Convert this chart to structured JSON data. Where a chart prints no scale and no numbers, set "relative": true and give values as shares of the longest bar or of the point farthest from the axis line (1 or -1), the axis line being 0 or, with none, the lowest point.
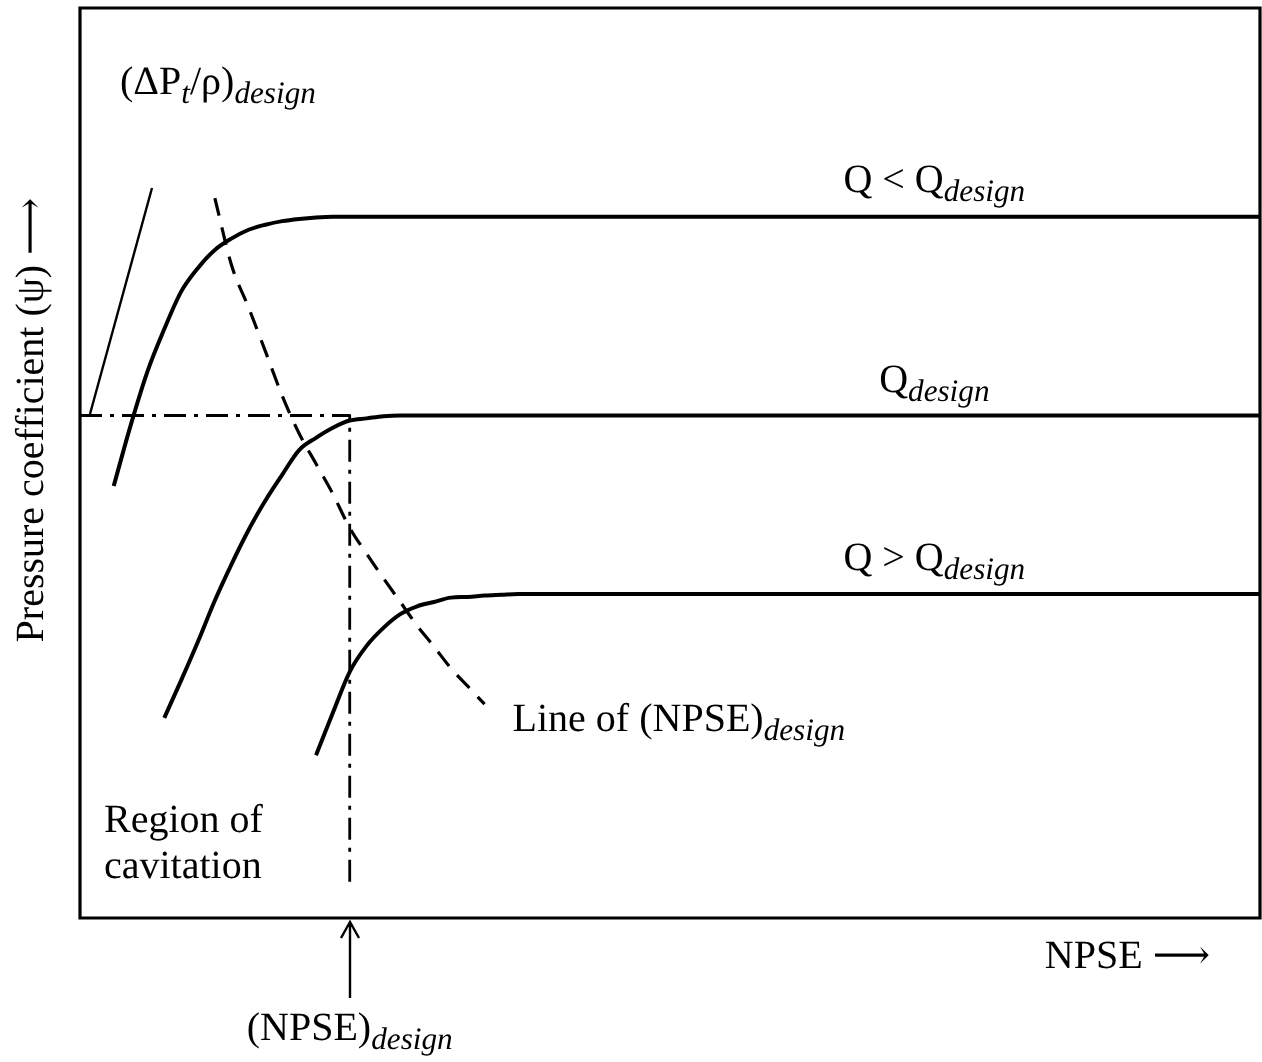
{
  "chart_data": {
    "type": "line",
    "relative": true,
    "xlabel": "NPSE ⟶",
    "ylabel": "Pressure coefficient (ψ) ⟶",
    "legend": false,
    "marker": "none",
    "categories": [
      null,
      null,
      null,
      null,
      null,
      null,
      null,
      null,
      null,
      null,
      null,
      null,
      null,
      null,
      null,
      null,
      null,
      null,
      null,
      null,
      null,
      null,
      null,
      null,
      null,
      null,
      null,
      null,
      null,
      null,
      null,
      null,
      null,
      null,
      null,
      null,
      null,
      null,
      null,
      null,
      null,
      null,
      null,
      null,
      null,
      null,
      null,
      null,
      null,
      null,
      null,
      null,
      null,
      null,
      null,
      null,
      null,
      null,
      null,
      null,
      null,
      null,
      null,
      null,
      null,
      null,
      null,
      null,
      null,
      null,
      null
    ],
    "series": [
      {
        "name": "Q < Q$_{design}$",
        "color": "#000000",
        "line_style": "solid",
        "values": [
          null,
          null,
          0.6,
          0.684,
          0.759,
          0.818,
          0.87,
          0.903,
          0.928,
          0.944,
          0.956,
          0.963,
          0.968,
          0.971,
          0.973,
          0.974,
          0.974,
          0.974,
          0.974,
          0.974,
          0.974,
          0.974,
          0.974,
          0.974,
          0.974,
          0.974,
          0.974,
          0.974,
          0.974,
          0.974,
          0.974,
          0.974,
          0.974,
          0.974,
          0.974,
          0.974,
          0.974,
          0.974,
          0.974,
          0.974,
          0.974,
          0.974,
          0.974,
          0.974,
          0.974,
          0.974,
          0.974,
          0.974,
          0.974,
          0.974,
          0.974,
          0.974,
          0.974,
          0.974,
          0.974,
          0.974,
          0.974,
          0.974,
          0.974,
          0.974,
          0.974,
          0.974,
          0.974,
          0.974,
          0.974,
          0.974,
          0.974,
          0.974,
          0.974,
          0.974,
          0.974
        ]
      },
      {
        "name": "Q$_{design}$",
        "color": "#000000",
        "line_style": "solid",
        "values": [
          null,
          null,
          null,
          null,
          null,
          0.278,
          0.33,
          0.384,
          0.441,
          0.492,
          0.539,
          0.58,
          0.616,
          0.65,
          0.667,
          0.681,
          0.691,
          0.694,
          0.697,
          0.698,
          0.698,
          0.698,
          0.698,
          0.698,
          0.698,
          0.698,
          0.698,
          0.698,
          0.698,
          0.698,
          0.698,
          0.698,
          0.698,
          0.698,
          0.698,
          0.698,
          0.698,
          0.698,
          0.698,
          0.698,
          0.698,
          0.698,
          0.698,
          0.698,
          0.698,
          0.698,
          0.698,
          0.698,
          0.698,
          0.698,
          0.698,
          0.698,
          0.698,
          0.698,
          0.698,
          0.698,
          0.698,
          0.698,
          0.698,
          0.698,
          0.698,
          0.698,
          0.698,
          0.698,
          0.698,
          0.698,
          0.698,
          0.698,
          0.698,
          0.698,
          0.698
        ]
      },
      {
        "name": "Q > Q$_{design}$",
        "color": "#000000",
        "line_style": "solid",
        "values": [
          null,
          null,
          null,
          null,
          null,
          null,
          null,
          null,
          null,
          null,
          null,
          null,
          null,
          null,
          0.226,
          0.285,
          0.342,
          0.378,
          0.403,
          0.422,
          0.433,
          0.439,
          0.445,
          0.446,
          0.448,
          0.449,
          0.45,
          0.45,
          0.45,
          0.45,
          0.45,
          0.45,
          0.45,
          0.45,
          0.45,
          0.45,
          0.45,
          0.45,
          0.45,
          0.45,
          0.45,
          0.45,
          0.45,
          0.45,
          0.45,
          0.45,
          0.45,
          0.45,
          0.45,
          0.45,
          0.45,
          0.45,
          0.45,
          0.45,
          0.45,
          0.45,
          0.45,
          0.45,
          0.45,
          0.45,
          0.45,
          0.45,
          0.45,
          0.45,
          0.45,
          0.45,
          0.45,
          0.45,
          0.45,
          0.45,
          0.45
        ]
      },
      {
        "name": "Line of (NPSE)$_{design}$",
        "color": "#000000",
        "line_style": "dashed",
        "values": [
          null,
          null,
          null,
          null,
          null,
          null,
          null,
          null,
          1,
          0.906,
          0.848,
          0.787,
          0.725,
          0.673,
          0.631,
          0.589,
          0.542,
          0.506,
          0.472,
          0.439,
          0.406,
          0.377,
          0.347,
          0.322,
          0.297,
          null,
          null,
          null,
          null,
          null,
          null,
          null,
          null,
          null,
          null,
          null,
          null,
          null,
          null,
          null,
          null,
          null,
          null,
          null,
          null,
          null,
          null,
          null,
          null,
          null,
          null,
          null,
          null,
          null,
          null,
          null,
          null,
          null,
          null,
          null,
          null,
          null,
          null,
          null,
          null,
          null,
          null,
          null,
          null,
          null,
          null
        ]
      },
      {
        "type": "step",
        "color": "#000000",
        "line_style": "dashdot",
        "values": [
          0.698,
          0.698,
          0.698,
          0.698,
          0.698,
          0.698,
          0.698,
          0.698,
          0.698,
          0.698,
          0.698,
          0.698,
          0.698,
          0.698,
          0.698,
          0.698,
          0.044,
          null,
          null,
          null,
          null,
          null,
          null,
          null,
          null,
          null,
          null,
          null,
          null,
          null,
          null,
          null,
          null,
          null,
          null,
          null,
          null,
          null,
          null,
          null,
          null,
          null,
          null,
          null,
          null,
          null,
          null,
          null,
          null,
          null,
          null,
          null,
          null,
          null,
          null,
          null,
          null,
          null,
          null,
          null,
          null,
          null,
          null,
          null,
          null,
          null,
          null,
          null,
          null,
          null,
          null
        ]
      }
    ],
    "annotations": [
      "(ΔP$_{t}$/ρ)$_{design}$",
      "Region of cavitation",
      "(NPSE)$_{design}$"
    ]
  }
}
